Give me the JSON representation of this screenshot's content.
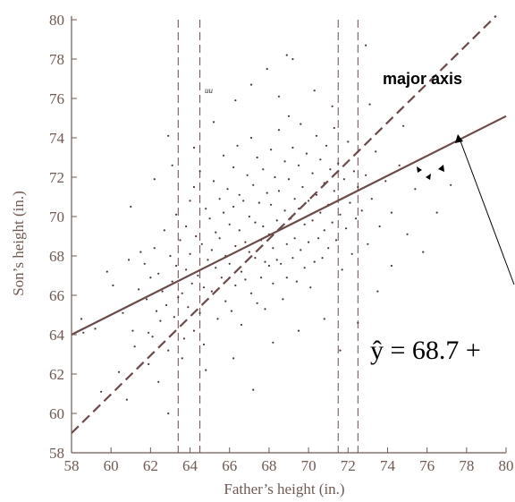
{
  "chart_data": {
    "type": "scatter",
    "xlabel": "Father’s height (in.)",
    "ylabel": "Son’s height (in.)",
    "xlim": [
      58,
      80
    ],
    "ylim": [
      58,
      80
    ],
    "x_ticks": [
      "58",
      "60",
      "62",
      "64",
      "66",
      "68",
      "70",
      "72",
      "74",
      "76",
      "78",
      "80"
    ],
    "y_ticks": [
      "58",
      "60",
      "62",
      "64",
      "66",
      "68",
      "70",
      "72",
      "74",
      "76",
      "78",
      "80"
    ],
    "grid": false,
    "lines": {
      "regression": {
        "x": [
          58,
          80
        ],
        "y": [
          64.0,
          75.1
        ],
        "style": "solid",
        "color": "#6b4a4a"
      },
      "major_axis": {
        "x": [
          58,
          79.5
        ],
        "y": [
          59.0,
          80.2
        ],
        "style": "dashed",
        "color": "#6b4a4a"
      }
    },
    "vertical_dashed_lines_x": [
      63.4,
      64.5,
      71.5,
      72.5
    ],
    "annotations": {
      "major_axis_label": "major axis",
      "equation": "ŷ = 68.7 +",
      "small_label": "uu"
    },
    "points_note": "Father–son height pairs, approx. 1078 points, centered near (68, 69)",
    "points": [
      [
        58.5,
        64.8
      ],
      [
        59.2,
        64.3
      ],
      [
        59.8,
        67.2
      ],
      [
        60.1,
        66.5
      ],
      [
        60.4,
        62.1
      ],
      [
        60.6,
        65.1
      ],
      [
        60.9,
        67.8
      ],
      [
        61.1,
        64.2
      ],
      [
        61.2,
        63.4
      ],
      [
        61.4,
        66.3
      ],
      [
        61.5,
        68.2
      ],
      [
        61.7,
        67.6
      ],
      [
        61.8,
        65.8
      ],
      [
        61.9,
        64.1
      ],
      [
        62.0,
        66.9
      ],
      [
        62.1,
        63.9
      ],
      [
        62.2,
        68.4
      ],
      [
        62.3,
        65.2
      ],
      [
        62.4,
        67.1
      ],
      [
        62.5,
        64.7
      ],
      [
        62.6,
        66.2
      ],
      [
        62.7,
        69.3
      ],
      [
        62.8,
        65.5
      ],
      [
        62.9,
        63.2
      ],
      [
        62.9,
        60.0
      ],
      [
        63.0,
        68.0
      ],
      [
        63.1,
        66.7
      ],
      [
        63.2,
        64.9
      ],
      [
        63.3,
        70.1
      ],
      [
        63.3,
        67.5
      ],
      [
        63.4,
        65.9
      ],
      [
        63.5,
        68.8
      ],
      [
        63.6,
        66.1
      ],
      [
        63.7,
        63.8
      ],
      [
        63.8,
        69.5
      ],
      [
        63.8,
        67.3
      ],
      [
        63.9,
        65.4
      ],
      [
        64.0,
        70.8
      ],
      [
        64.0,
        68.1
      ],
      [
        64.1,
        66.6
      ],
      [
        64.2,
        64.2
      ],
      [
        64.2,
        71.5
      ],
      [
        64.3,
        69.0
      ],
      [
        64.4,
        67.0
      ],
      [
        64.5,
        65.1
      ],
      [
        64.5,
        72.3
      ],
      [
        64.6,
        68.6
      ],
      [
        64.7,
        66.4
      ],
      [
        64.7,
        63.5
      ],
      [
        64.8,
        70.4
      ],
      [
        64.9,
        67.8
      ],
      [
        64.9,
        65.8
      ],
      [
        65.0,
        69.9
      ],
      [
        65.1,
        68.3
      ],
      [
        65.1,
        66.2
      ],
      [
        65.2,
        71.8
      ],
      [
        65.3,
        69.2
      ],
      [
        65.3,
        67.4
      ],
      [
        65.4,
        64.8
      ],
      [
        65.5,
        70.9
      ],
      [
        65.5,
        68.9
      ],
      [
        65.6,
        66.9
      ],
      [
        65.7,
        73.1
      ],
      [
        65.7,
        70.2
      ],
      [
        65.8,
        68.0
      ],
      [
        65.8,
        65.7
      ],
      [
        65.9,
        71.4
      ],
      [
        66.0,
        69.6
      ],
      [
        66.0,
        67.6
      ],
      [
        66.1,
        65.2
      ],
      [
        66.2,
        72.5
      ],
      [
        66.2,
        70.5
      ],
      [
        66.3,
        68.5
      ],
      [
        66.3,
        66.5
      ],
      [
        66.4,
        73.6
      ],
      [
        66.5,
        71.1
      ],
      [
        66.5,
        69.3
      ],
      [
        66.6,
        67.2
      ],
      [
        66.6,
        64.5
      ],
      [
        66.7,
        70.8
      ],
      [
        66.8,
        68.7
      ],
      [
        66.8,
        66.8
      ],
      [
        66.9,
        72.1
      ],
      [
        67.0,
        70.0
      ],
      [
        67.0,
        68.2
      ],
      [
        67.1,
        66.1
      ],
      [
        67.1,
        74.0
      ],
      [
        67.2,
        71.6
      ],
      [
        67.3,
        69.7
      ],
      [
        67.3,
        67.9
      ],
      [
        67.4,
        65.6
      ],
      [
        67.4,
        73.0
      ],
      [
        67.5,
        70.7
      ],
      [
        67.6,
        68.8
      ],
      [
        67.6,
        66.9
      ],
      [
        67.7,
        72.4
      ],
      [
        67.7,
        69.5
      ],
      [
        67.8,
        67.7
      ],
      [
        67.8,
        65.3
      ],
      [
        67.9,
        71.2
      ],
      [
        68.0,
        69.1
      ],
      [
        68.0,
        67.5
      ],
      [
        68.1,
        73.4
      ],
      [
        68.1,
        70.6
      ],
      [
        68.2,
        68.4
      ],
      [
        68.2,
        66.6
      ],
      [
        68.3,
        72.0
      ],
      [
        68.4,
        69.8
      ],
      [
        68.4,
        67.8
      ],
      [
        68.5,
        74.4
      ],
      [
        68.5,
        71.3
      ],
      [
        68.6,
        69.4
      ],
      [
        68.6,
        67.6
      ],
      [
        68.7,
        65.8
      ],
      [
        68.8,
        72.8
      ],
      [
        68.8,
        70.3
      ],
      [
        68.9,
        68.6
      ],
      [
        68.9,
        66.9
      ],
      [
        69.0,
        75.1
      ],
      [
        69.0,
        71.9
      ],
      [
        69.1,
        69.9
      ],
      [
        69.2,
        67.9
      ],
      [
        69.2,
        73.5
      ],
      [
        69.3,
        70.9
      ],
      [
        69.3,
        68.9
      ],
      [
        69.4,
        66.7
      ],
      [
        69.5,
        72.6
      ],
      [
        69.5,
        70.4
      ],
      [
        69.6,
        68.3
      ],
      [
        69.6,
        74.7
      ],
      [
        69.7,
        71.5
      ],
      [
        69.8,
        69.6
      ],
      [
        69.8,
        67.4
      ],
      [
        69.9,
        73.2
      ],
      [
        70.0,
        70.8
      ],
      [
        70.0,
        68.7
      ],
      [
        70.1,
        66.4
      ],
      [
        70.2,
        72.2
      ],
      [
        70.2,
        69.8
      ],
      [
        70.3,
        67.7
      ],
      [
        70.4,
        74.1
      ],
      [
        70.4,
        71.1
      ],
      [
        70.5,
        68.9
      ],
      [
        70.6,
        72.9
      ],
      [
        70.6,
        70.2
      ],
      [
        70.7,
        67.9
      ],
      [
        70.8,
        71.7
      ],
      [
        70.8,
        69.3
      ],
      [
        70.9,
        73.6
      ],
      [
        71.0,
        70.6
      ],
      [
        71.0,
        68.4
      ],
      [
        71.1,
        72.4
      ],
      [
        71.2,
        69.7
      ],
      [
        71.3,
        74.5
      ],
      [
        71.3,
        71.3
      ],
      [
        71.4,
        68.8
      ],
      [
        71.5,
        72.7
      ],
      [
        71.6,
        70.1
      ],
      [
        71.7,
        67.3
      ],
      [
        71.8,
        71.9
      ],
      [
        71.9,
        69.4
      ],
      [
        72.0,
        73.8
      ],
      [
        72.1,
        70.7
      ],
      [
        72.2,
        68.1
      ],
      [
        72.3,
        72.3
      ],
      [
        72.4,
        69.9
      ],
      [
        72.5,
        71.5
      ],
      [
        72.7,
        70.3
      ],
      [
        72.9,
        72.1
      ],
      [
        73.0,
        68.6
      ],
      [
        73.2,
        70.9
      ],
      [
        73.4,
        73.3
      ],
      [
        73.6,
        69.5
      ],
      [
        73.9,
        71.8
      ],
      [
        74.2,
        70.2
      ],
      [
        74.6,
        72.6
      ],
      [
        75.0,
        69.1
      ],
      [
        75.4,
        71.4
      ],
      [
        72.9,
        78.7
      ],
      [
        69.2,
        78.0
      ],
      [
        68.9,
        78.2
      ],
      [
        67.9,
        77.5
      ],
      [
        62.9,
        74.1
      ],
      [
        58.6,
        64.1
      ],
      [
        59.5,
        61.1
      ],
      [
        60.8,
        60.7
      ],
      [
        61.9,
        62.5
      ],
      [
        62.4,
        61.6
      ],
      [
        63.6,
        62.8
      ],
      [
        64.8,
        62.2
      ],
      [
        66.2,
        62.8
      ],
      [
        67.2,
        61.2
      ],
      [
        68.2,
        63.6
      ],
      [
        69.5,
        64.2
      ],
      [
        70.8,
        64.8
      ],
      [
        71.6,
        63.2
      ],
      [
        72.5,
        64.6
      ],
      [
        73.5,
        66.2
      ],
      [
        74.2,
        67.5
      ],
      [
        75.8,
        68.2
      ],
      [
        76.5,
        70.2
      ],
      [
        77.2,
        71.6
      ],
      [
        61.0,
        70.5
      ],
      [
        62.2,
        71.9
      ],
      [
        63.1,
        72.6
      ],
      [
        64.2,
        73.5
      ],
      [
        65.2,
        74.8
      ],
      [
        66.3,
        75.9
      ],
      [
        67.1,
        76.7
      ],
      [
        68.5,
        76.1
      ],
      [
        70.3,
        76.4
      ],
      [
        71.2,
        75.6
      ],
      [
        73.1,
        75.7
      ],
      [
        74.8,
        74.6
      ]
    ]
  }
}
